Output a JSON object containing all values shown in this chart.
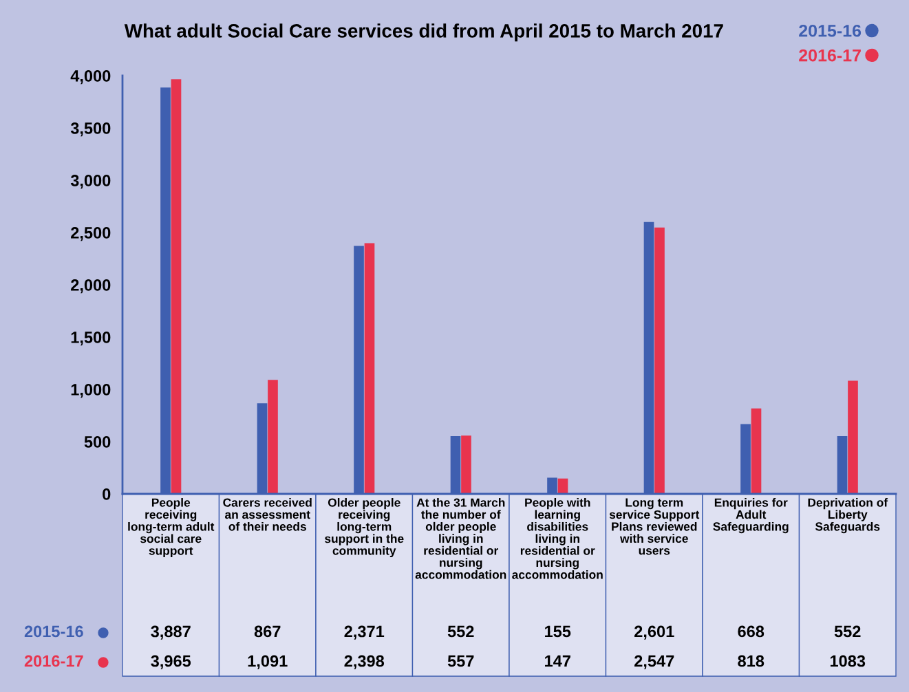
{
  "chart_data": {
    "type": "bar",
    "title": "What adult Social Care services did from April 2015 to March 2017",
    "categories": [
      "People receiving long-term adult social care support",
      "Carers received an assessment of their needs",
      "Older people receiving long-term support in the community",
      "At the 31 March the number of older people living in residential or nursing accommodation",
      "People with learning disabilities living in residential or nursing accommodation",
      "Long term service Support Plans reviewed with service users",
      "Enquiries for Adult Safeguarding",
      "Deprivation of Liberty Safeguards"
    ],
    "series": [
      {
        "name": "2015-16",
        "color": "#3f5fb0",
        "values": [
          3887,
          867,
          2371,
          552,
          155,
          2601,
          668,
          552
        ],
        "value_labels": [
          "3,887",
          "867",
          "2,371",
          "552",
          "155",
          "2,601",
          "668",
          "552"
        ]
      },
      {
        "name": "2016-17",
        "color": "#e8344e",
        "values": [
          3965,
          1091,
          2398,
          557,
          147,
          2547,
          818,
          1083
        ],
        "value_labels": [
          "3,965",
          "1,091",
          "2,398",
          "557",
          "147",
          "2,547",
          "818",
          "1083"
        ]
      }
    ],
    "ylim": [
      0,
      4000
    ],
    "yticks": [
      0,
      {
        "value": 500,
        "label": "500"
      },
      {
        "value": 1000,
        "label": "1,000"
      },
      {
        "value": 1500,
        "label": "1,500"
      },
      {
        "value": 2000,
        "label": "2,000"
      },
      {
        "value": 2500,
        "label": "2,500"
      },
      {
        "value": 3000,
        "label": "3,000"
      },
      {
        "value": 3500,
        "label": "3,500"
      },
      {
        "value": 4000,
        "label": "4,000"
      }
    ],
    "grid": false,
    "legend": "top right"
  }
}
